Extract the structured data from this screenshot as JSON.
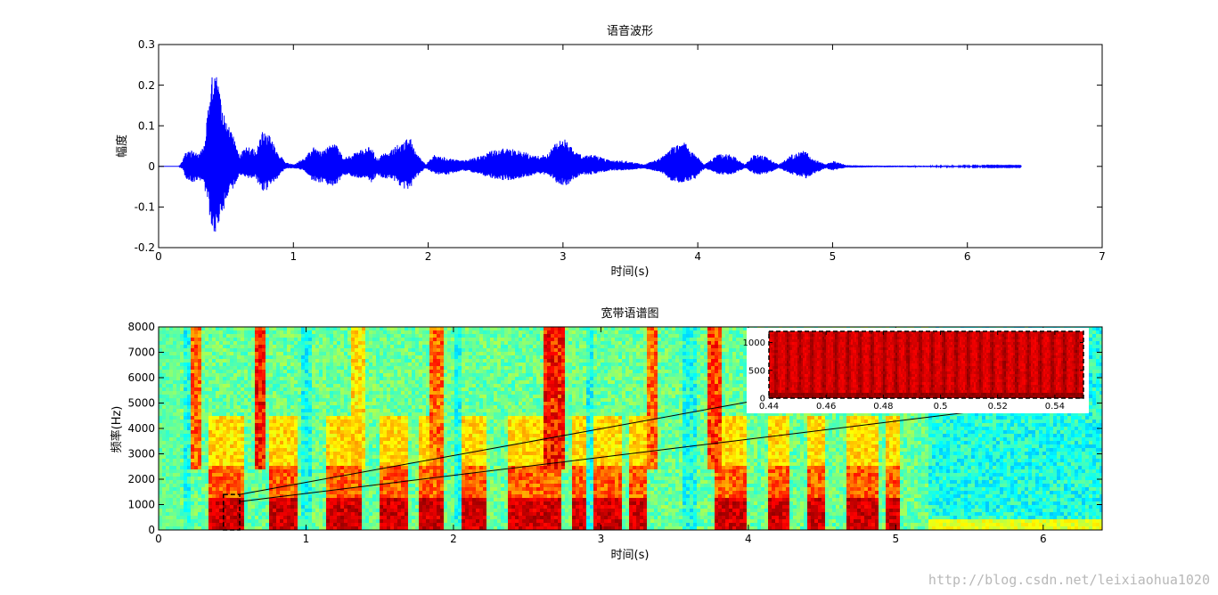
{
  "chart_data": [
    {
      "type": "line",
      "title": "语音波形",
      "xlabel": "时间(s)",
      "ylabel": "幅度",
      "xlim": [
        0,
        7
      ],
      "ylim": [
        -0.2,
        0.3
      ],
      "xticks": [
        "0",
        "1",
        "2",
        "3",
        "4",
        "5",
        "6",
        "7"
      ],
      "yticks": [
        "-0.2",
        "-0.1",
        "0",
        "0.1",
        "0.2",
        "0.3"
      ],
      "line_color": "#0000ff",
      "signal_duration": 6.4,
      "envelope": [
        [
          0.18,
          0.015,
          -0.01
        ],
        [
          0.2,
          0.04,
          -0.03
        ],
        [
          0.25,
          0.04,
          -0.04
        ],
        [
          0.3,
          0.03,
          -0.03
        ],
        [
          0.33,
          0.05,
          -0.05
        ],
        [
          0.36,
          0.12,
          -0.08
        ],
        [
          0.4,
          0.24,
          -0.18
        ],
        [
          0.43,
          0.22,
          -0.16
        ],
        [
          0.47,
          0.15,
          -0.12
        ],
        [
          0.52,
          0.1,
          -0.07
        ],
        [
          0.56,
          0.07,
          -0.05
        ],
        [
          0.6,
          0.03,
          -0.02
        ],
        [
          0.66,
          0.05,
          -0.03
        ],
        [
          0.72,
          0.04,
          -0.03
        ],
        [
          0.77,
          0.09,
          -0.07
        ],
        [
          0.82,
          0.08,
          -0.05
        ],
        [
          0.88,
          0.04,
          -0.03
        ],
        [
          0.94,
          0.01,
          -0.005
        ],
        [
          1.0,
          0.005,
          -0.005
        ],
        [
          1.08,
          0.02,
          -0.01
        ],
        [
          1.15,
          0.05,
          -0.04
        ],
        [
          1.22,
          0.04,
          -0.04
        ],
        [
          1.28,
          0.06,
          -0.05
        ],
        [
          1.33,
          0.05,
          -0.04
        ],
        [
          1.37,
          0.02,
          -0.02
        ],
        [
          1.5,
          0.04,
          -0.03
        ],
        [
          1.58,
          0.05,
          -0.04
        ],
        [
          1.62,
          0.02,
          -0.02
        ],
        [
          1.66,
          0.03,
          -0.03
        ],
        [
          1.73,
          0.04,
          -0.03
        ],
        [
          1.79,
          0.06,
          -0.05
        ],
        [
          1.86,
          0.08,
          -0.06
        ],
        [
          1.9,
          0.04,
          -0.03
        ],
        [
          1.98,
          0.005,
          -0.005
        ],
        [
          2.05,
          0.03,
          -0.02
        ],
        [
          2.15,
          0.02,
          -0.02
        ],
        [
          2.25,
          0.015,
          -0.01
        ],
        [
          2.38,
          0.025,
          -0.02
        ],
        [
          2.48,
          0.04,
          -0.03
        ],
        [
          2.58,
          0.045,
          -0.035
        ],
        [
          2.68,
          0.04,
          -0.03
        ],
        [
          2.8,
          0.025,
          -0.02
        ],
        [
          2.88,
          0.03,
          -0.02
        ],
        [
          2.95,
          0.06,
          -0.04
        ],
        [
          3.02,
          0.07,
          -0.05
        ],
        [
          3.08,
          0.04,
          -0.03
        ],
        [
          3.15,
          0.025,
          -0.02
        ],
        [
          3.22,
          0.03,
          -0.02
        ],
        [
          3.35,
          0.015,
          -0.01
        ],
        [
          3.45,
          0.015,
          -0.01
        ],
        [
          3.6,
          0.005,
          -0.005
        ],
        [
          3.72,
          0.02,
          -0.015
        ],
        [
          3.82,
          0.05,
          -0.04
        ],
        [
          3.9,
          0.06,
          -0.04
        ],
        [
          3.98,
          0.03,
          -0.03
        ],
        [
          4.05,
          0.005,
          -0.005
        ],
        [
          4.15,
          0.03,
          -0.02
        ],
        [
          4.25,
          0.03,
          -0.02
        ],
        [
          4.35,
          0.005,
          -0.005
        ],
        [
          4.42,
          0.03,
          -0.02
        ],
        [
          4.5,
          0.025,
          -0.02
        ],
        [
          4.6,
          0.005,
          -0.005
        ],
        [
          4.7,
          0.03,
          -0.02
        ],
        [
          4.8,
          0.04,
          -0.03
        ],
        [
          4.85,
          0.02,
          -0.02
        ],
        [
          4.95,
          0.005,
          -0.005
        ],
        [
          5.0,
          0.015,
          -0.01
        ],
        [
          5.1,
          0.003,
          -0.003
        ],
        [
          5.3,
          0.002,
          -0.002
        ],
        [
          6.4,
          0.001,
          -0.001
        ]
      ]
    },
    {
      "type": "heatmap",
      "title": "宽带语谱图",
      "xlabel": "时间(s)",
      "ylabel": "频率(Hz)",
      "xlim": [
        0,
        6.4
      ],
      "ylim": [
        0,
        8000
      ],
      "xticks": [
        "0",
        "1",
        "2",
        "3",
        "4",
        "5",
        "6"
      ],
      "yticks": [
        "0",
        "1000",
        "2000",
        "3000",
        "4000",
        "5000",
        "6000",
        "7000",
        "8000"
      ],
      "colormap": "jet",
      "zoom_region": {
        "x": [
          0.44,
          0.55
        ],
        "y": [
          0,
          1400
        ]
      },
      "inset": {
        "xlim": [
          0.44,
          0.55
        ],
        "ylim": [
          0,
          1200
        ],
        "xticks": [
          "0.44",
          "0.46",
          "0.48",
          "0.5",
          "0.52",
          "0.54"
        ],
        "yticks": [
          "0",
          "500",
          "1000"
        ]
      }
    }
  ],
  "watermark": "http://blog.csdn.net/leixiaohua1020"
}
